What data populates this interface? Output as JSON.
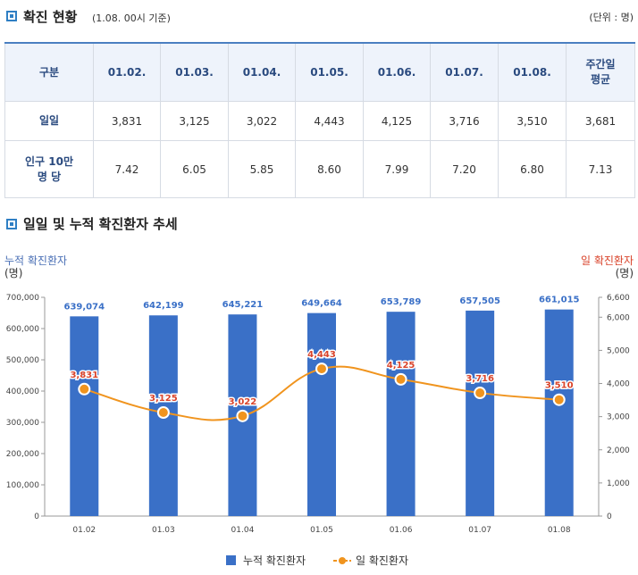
{
  "section1": {
    "title": "확진 현황",
    "subtitle": "(1.08. 00시 기준)",
    "unit": "(단위 : 명)"
  },
  "table": {
    "header_label": "구분",
    "columns": [
      "01.02.",
      "01.03.",
      "01.04.",
      "01.05.",
      "01.06.",
      "01.07.",
      "01.08."
    ],
    "weekly_label_line1": "주간일",
    "weekly_label_line2": "평균",
    "rows": [
      {
        "label_line1": "일일",
        "label_line2": "",
        "values": [
          "3,831",
          "3,125",
          "3,022",
          "4,443",
          "4,125",
          "3,716",
          "3,510",
          "3,681"
        ]
      },
      {
        "label_line1": "인구 10만",
        "label_line2": "명 당",
        "values": [
          "7.42",
          "6.05",
          "5.85",
          "8.60",
          "7.99",
          "7.20",
          "6.80",
          "7.13"
        ]
      }
    ]
  },
  "section2": {
    "title": "일일 및 누적 확진환자 추세"
  },
  "chart_data": {
    "type": "bar",
    "categories": [
      "01.02",
      "01.03",
      "01.04",
      "01.05",
      "01.06",
      "01.07",
      "01.08"
    ],
    "series": [
      {
        "name": "누적 확진환자",
        "type": "bar",
        "axis": "left",
        "color": "#3a70c7",
        "values": [
          639074,
          642199,
          645221,
          649664,
          653789,
          657505,
          661015
        ],
        "labels": [
          "639,074",
          "642,199",
          "645,221",
          "649,664",
          "653,789",
          "657,505",
          "661,015"
        ]
      },
      {
        "name": "일 확진환자",
        "type": "line",
        "axis": "right",
        "color": "#f0941e",
        "values": [
          3831,
          3125,
          3022,
          4443,
          4125,
          3716,
          3510
        ],
        "labels": [
          "3,831",
          "3,125",
          "3,022",
          "4,443",
          "4,125",
          "3,716",
          "3,510"
        ]
      }
    ],
    "y_left": {
      "label_line1": "누적 확진환자",
      "label_line2": "(명)",
      "min": 0,
      "max": 700000,
      "ticks": [
        0,
        100000,
        200000,
        300000,
        400000,
        500000,
        600000,
        700000
      ],
      "tick_labels": [
        "0",
        "100,000",
        "200,000",
        "300,000",
        "400,000",
        "500,000",
        "600,000",
        "700,000"
      ]
    },
    "y_right": {
      "label_line1": "일 확진환자",
      "label_line2": "(명)",
      "min": 0,
      "max": 6600,
      "ticks": [
        0,
        1000,
        2000,
        3000,
        4000,
        5000,
        6000,
        6600
      ],
      "tick_labels": [
        "0",
        "1,000",
        "2,000",
        "3,000",
        "4,000",
        "5,000",
        "6,000",
        "6,600"
      ]
    },
    "grid": false,
    "legend_position": "bottom",
    "bar_label_color": "#3a70c7",
    "line_label_color": "#d9442b"
  }
}
